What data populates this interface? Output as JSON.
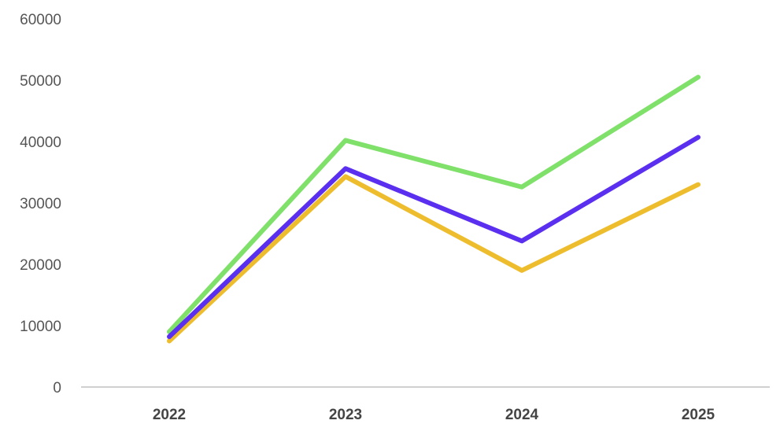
{
  "chart_data": {
    "type": "line",
    "title": "",
    "xlabel": "",
    "ylabel": "",
    "categories": [
      "2022",
      "2023",
      "2024",
      "2025"
    ],
    "ylim": [
      0,
      60000
    ],
    "yticks": [
      0,
      10000,
      20000,
      30000,
      40000,
      50000,
      60000
    ],
    "ytick_labels": [
      "0",
      "10000",
      "20000",
      "30000",
      "40000",
      "50000",
      "60000"
    ],
    "grid": false,
    "legend": "none",
    "series": [
      {
        "values": [
          9000,
          40200,
          32600,
          50500
        ],
        "color": "#7fe06a"
      },
      {
        "values": [
          7500,
          34300,
          19000,
          33000
        ],
        "color": "#eebd2e"
      },
      {
        "values": [
          8200,
          35600,
          23800,
          40700
        ],
        "color": "#5b2ff0"
      }
    ],
    "axis_color": "#d0d0d0"
  }
}
